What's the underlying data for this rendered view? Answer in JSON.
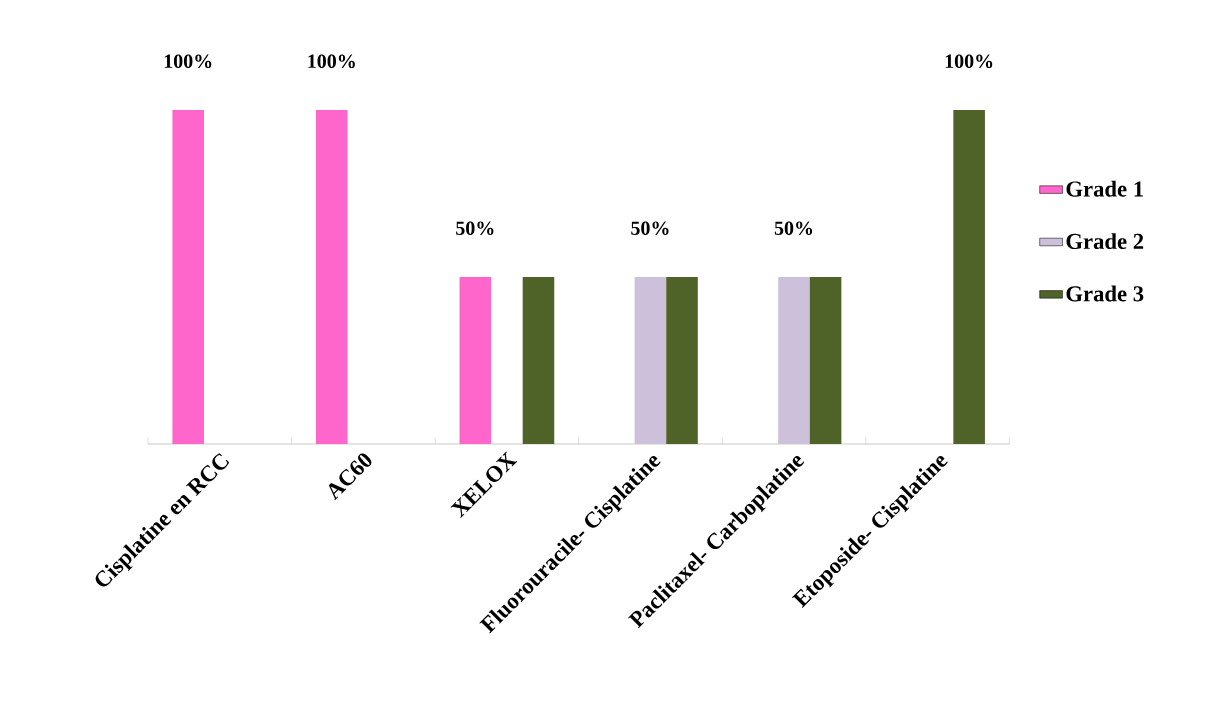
{
  "chart_data": {
    "type": "bar",
    "categories": [
      "Cisplatine en RCC",
      "AC60",
      "XELOX",
      "Fluorouracile- Cisplatine",
      "Paclitaxel- Carboplatine",
      "Etoposide- Cisplatine"
    ],
    "series": [
      {
        "name": "Grade 1",
        "color": "#ff66cc",
        "values": [
          100,
          100,
          50,
          null,
          null,
          null
        ],
        "value_labels": [
          "100%",
          "100%",
          "50%",
          null,
          null,
          null
        ]
      },
      {
        "name": "Grade 2",
        "color": "#ccc0da",
        "values": [
          null,
          null,
          null,
          50,
          50,
          null
        ],
        "value_labels": [
          null,
          null,
          null,
          "50%",
          "50%",
          null
        ]
      },
      {
        "name": "Grade 3",
        "color": "#4f6228",
        "values": [
          null,
          null,
          50,
          50,
          50,
          100
        ],
        "value_labels": [
          null,
          null,
          null,
          null,
          null,
          "100%"
        ]
      }
    ],
    "legend": "right"
  }
}
